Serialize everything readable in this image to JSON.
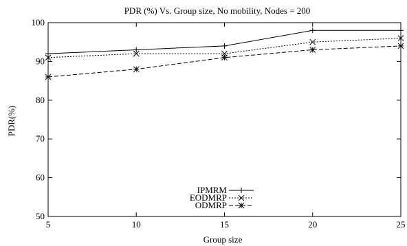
{
  "chart_data": {
    "type": "line",
    "title": "PDR (%) Vs.  Group size, No mobility, Nodes = 200",
    "xlabel": "Group size",
    "ylabel": "PDR(%)",
    "xlim": [
      5,
      25
    ],
    "ylim": [
      50,
      100
    ],
    "xticks": [
      5,
      10,
      15,
      20,
      25
    ],
    "yticks": [
      50,
      60,
      70,
      80,
      90,
      100
    ],
    "grid": false,
    "legend_position": "bottom-center",
    "x": [
      5,
      10,
      15,
      20,
      25
    ],
    "series": [
      {
        "name": "IPMRM",
        "values": [
          92,
          93,
          94,
          98,
          98
        ],
        "style": "solid",
        "marker": "plus",
        "color": "#000000"
      },
      {
        "name": "EODMRP",
        "values": [
          91,
          92,
          92,
          95,
          96
        ],
        "style": "dotted",
        "marker": "x",
        "color": "#000000"
      },
      {
        "name": "ODMRP",
        "values": [
          86,
          88,
          91,
          93,
          94
        ],
        "style": "dashed",
        "marker": "star",
        "color": "#000000"
      }
    ]
  }
}
